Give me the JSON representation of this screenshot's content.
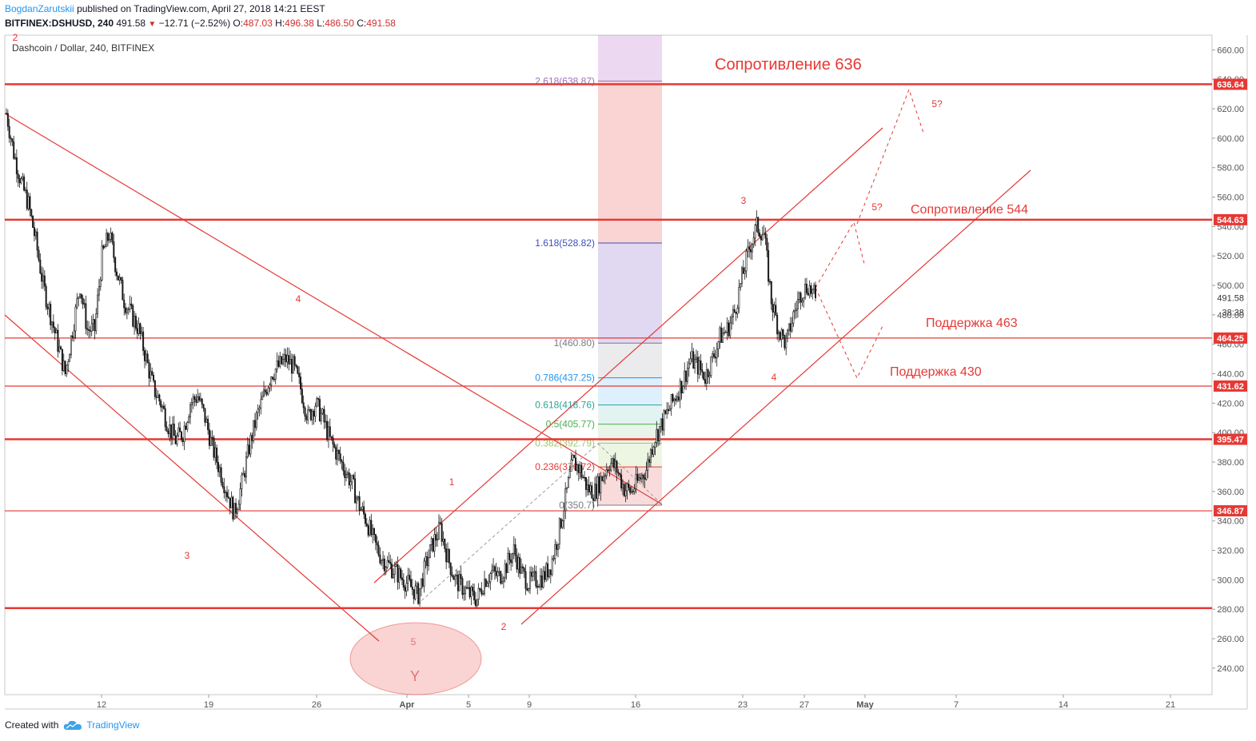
{
  "header": {
    "author": "BogdanZarutskii",
    "published": "published on TradingView.com, April 27, 2018 14:21 EEST",
    "symbol": "BITFINEX:DSHUSD, 240",
    "last": "491.58",
    "change_arrow": "down-triangle-icon",
    "change": "−12.71 (−2.52%)",
    "o_label": "O:",
    "o": "487.03",
    "h_label": "H:",
    "h": "496.38",
    "l_label": "L:",
    "l": "486.50",
    "c_label": "C:",
    "c": "491.58"
  },
  "legend_title": "Dashcoin / Dollar, 240, BITFINEX",
  "footer": {
    "created": "Created with",
    "brand": "TradingView",
    "logo_icon": "tradingview-cloud-icon"
  },
  "colors": {
    "red": "#e53935",
    "grid": "#ffffff",
    "candle": "#1a1a1a"
  },
  "chart_data": {
    "type": "candlestick",
    "ylim": [
      222,
      670
    ],
    "y_ticks": [
      "240.00",
      "260.00",
      "280.00",
      "300.00",
      "320.00",
      "340.00",
      "360.00",
      "380.00",
      "400.00",
      "420.00",
      "440.00",
      "460.00",
      "480.00",
      "500.00",
      "520.00",
      "540.00",
      "560.00",
      "580.00",
      "600.00",
      "620.00",
      "640.00",
      "660.00"
    ],
    "x_ticks": [
      "12",
      "19",
      "26",
      "Apr",
      "5",
      "9",
      "16",
      "23",
      "27",
      "May",
      "7",
      "14",
      "21"
    ],
    "price_labels": [
      "636.64",
      "544.63",
      "464.25",
      "431.62",
      "395.47",
      "346.87"
    ],
    "last_price": "491.58",
    "countdown": "38:38",
    "horizontal_levels": [
      636.64,
      544.63,
      464.25,
      431.62,
      395.47,
      346.87,
      280.8
    ],
    "price_path": [
      [
        0,
        617
      ],
      [
        5,
        590
      ],
      [
        10,
        570
      ],
      [
        15,
        555
      ],
      [
        20,
        530
      ],
      [
        25,
        500
      ],
      [
        30,
        480
      ],
      [
        35,
        460
      ],
      [
        40,
        440
      ],
      [
        45,
        470
      ],
      [
        50,
        500
      ],
      [
        55,
        470
      ],
      [
        60,
        470
      ],
      [
        65,
        520
      ],
      [
        70,
        535
      ],
      [
        75,
        510
      ],
      [
        80,
        490
      ],
      [
        85,
        480
      ],
      [
        90,
        470
      ],
      [
        95,
        450
      ],
      [
        100,
        430
      ],
      [
        105,
        420
      ],
      [
        110,
        405
      ],
      [
        115,
        395
      ],
      [
        120,
        400
      ],
      [
        125,
        420
      ],
      [
        130,
        425
      ],
      [
        135,
        410
      ],
      [
        140,
        390
      ],
      [
        145,
        375
      ],
      [
        150,
        360
      ],
      [
        155,
        345
      ],
      [
        160,
        365
      ],
      [
        165,
        390
      ],
      [
        170,
        410
      ],
      [
        175,
        425
      ],
      [
        180,
        440
      ],
      [
        185,
        445
      ],
      [
        190,
        450
      ],
      [
        195,
        445
      ],
      [
        200,
        430
      ],
      [
        205,
        410
      ],
      [
        210,
        420
      ],
      [
        215,
        410
      ],
      [
        220,
        395
      ],
      [
        225,
        385
      ],
      [
        230,
        375
      ],
      [
        235,
        365
      ],
      [
        240,
        350
      ],
      [
        245,
        340
      ],
      [
        250,
        325
      ],
      [
        255,
        315
      ],
      [
        260,
        310
      ],
      [
        265,
        305
      ],
      [
        270,
        300
      ],
      [
        275,
        295
      ],
      [
        280,
        290
      ],
      [
        285,
        310
      ],
      [
        290,
        325
      ],
      [
        295,
        335
      ],
      [
        300,
        315
      ],
      [
        305,
        300
      ],
      [
        310,
        295
      ],
      [
        315,
        290
      ],
      [
        320,
        287
      ],
      [
        325,
        300
      ],
      [
        330,
        305
      ],
      [
        335,
        302
      ],
      [
        340,
        310
      ],
      [
        345,
        320
      ],
      [
        350,
        305
      ],
      [
        355,
        298
      ],
      [
        360,
        300
      ],
      [
        365,
        302
      ],
      [
        370,
        310
      ],
      [
        375,
        330
      ],
      [
        380,
        355
      ],
      [
        385,
        380
      ],
      [
        390,
        375
      ],
      [
        395,
        362
      ],
      [
        400,
        360
      ],
      [
        405,
        370
      ],
      [
        410,
        380
      ],
      [
        415,
        375
      ],
      [
        420,
        362
      ],
      [
        425,
        360
      ],
      [
        430,
        368
      ],
      [
        435,
        375
      ],
      [
        440,
        395
      ],
      [
        445,
        405
      ],
      [
        450,
        415
      ],
      [
        455,
        425
      ],
      [
        460,
        435
      ],
      [
        465,
        450
      ],
      [
        470,
        445
      ],
      [
        475,
        438
      ],
      [
        480,
        450
      ],
      [
        485,
        465
      ],
      [
        490,
        470
      ],
      [
        495,
        482
      ],
      [
        500,
        505
      ],
      [
        505,
        525
      ],
      [
        510,
        540
      ],
      [
        515,
        535
      ],
      [
        520,
        490
      ],
      [
        525,
        470
      ],
      [
        530,
        460
      ],
      [
        535,
        480
      ],
      [
        540,
        495
      ],
      [
        545,
        500
      ],
      [
        550,
        491.58
      ]
    ],
    "fibonacci": [
      {
        "label": "2.618(638.87)",
        "value": 638.87,
        "color": "#9e6fb8"
      },
      {
        "label": "1.618(528.82)",
        "value": 528.82,
        "color": "#3f51b5"
      },
      {
        "label": "1(460.80)",
        "value": 460.8,
        "color": "#787b86"
      },
      {
        "label": "0.786(437.25)",
        "value": 437.25,
        "color": "#2196f3"
      },
      {
        "label": "0.618(418.76)",
        "value": 418.76,
        "color": "#26a69a"
      },
      {
        "label": "0.5(405.77)",
        "value": 405.77,
        "color": "#4caf50"
      },
      {
        "label": "0.382(392.79)",
        "value": 392.79,
        "color": "#9ccc65"
      },
      {
        "label": "0.236(376.72)",
        "value": 376.72,
        "color": "#e53935"
      },
      {
        "label": "0(350.7)",
        "value": 350.7,
        "color": "#787b86"
      }
    ],
    "annotations": {
      "resistance_636": "Сопротивление 636",
      "resistance_544": "Сопротивление 544",
      "support_463": "Поддержка 463",
      "support_430": "Поддержка 430",
      "wave_labels": [
        "2",
        "4",
        "3",
        "5",
        "Y",
        "1",
        "2",
        "3",
        "4",
        "5?",
        "5?"
      ]
    }
  }
}
